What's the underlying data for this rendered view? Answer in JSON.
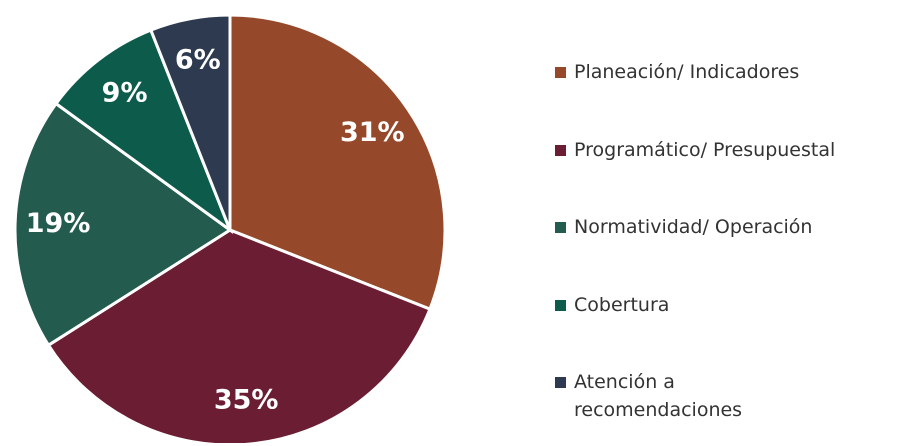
{
  "chart_data": {
    "type": "pie",
    "categories": [
      "Planeación/ Indicadores",
      "Programático/ Presupuestal",
      "Normatividad/ Operación",
      "Cobertura",
      "Atención a recomendaciones"
    ],
    "values": [
      31,
      35,
      19,
      9,
      6
    ],
    "value_labels": [
      "31%",
      "35%",
      "19%",
      "9%",
      "6%"
    ],
    "colors": [
      "#96492a",
      "#6a1d33",
      "#235b4e",
      "#0d5c4b",
      "#2e3a4f"
    ],
    "legend": "right"
  }
}
